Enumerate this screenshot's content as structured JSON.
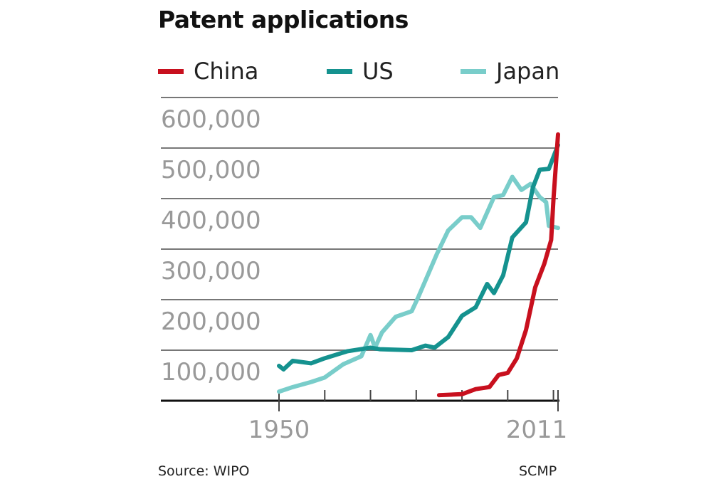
{
  "chart_data": {
    "type": "line",
    "title": "Patent applications",
    "xlabel": "",
    "ylabel": "",
    "xlim": [
      1950,
      2011
    ],
    "ylim": [
      0,
      600000
    ],
    "grid": true,
    "legend_placement": "top",
    "x_tick_labels": [
      "1950",
      "2011"
    ],
    "y_tick_labels": [
      "100,000",
      "200,000",
      "300,000",
      "400,000",
      "500,000",
      "600,000"
    ],
    "y_ticks": [
      100000,
      200000,
      300000,
      400000,
      500000,
      600000
    ],
    "x_ticks": [
      1950,
      1960,
      1970,
      1980,
      1990,
      2000,
      2010,
      2011
    ],
    "series": [
      {
        "name": "China",
        "color": "#c8101e",
        "points": [
          [
            1985,
            11000
          ],
          [
            1990,
            13000
          ],
          [
            1993,
            23000
          ],
          [
            1996,
            27000
          ],
          [
            1998,
            51000
          ],
          [
            2000,
            55000
          ],
          [
            2002,
            84000
          ],
          [
            2004,
            140000
          ],
          [
            2006,
            224000
          ],
          [
            2008,
            271000
          ],
          [
            2009.5,
            318000
          ],
          [
            2010,
            398000
          ],
          [
            2011,
            527000
          ]
        ]
      },
      {
        "name": "US",
        "color": "#15928f",
        "points": [
          [
            1950,
            69000
          ],
          [
            1951,
            62000
          ],
          [
            1953,
            79000
          ],
          [
            1957,
            74000
          ],
          [
            1960,
            84000
          ],
          [
            1965,
            98000
          ],
          [
            1970,
            105000
          ],
          [
            1972,
            102000
          ],
          [
            1979,
            100000
          ],
          [
            1982,
            109000
          ],
          [
            1984,
            105000
          ],
          [
            1987,
            126000
          ],
          [
            1990,
            168000
          ],
          [
            1993,
            185000
          ],
          [
            1995.5,
            231000
          ],
          [
            1997,
            213000
          ],
          [
            1999,
            248000
          ],
          [
            2001,
            323000
          ],
          [
            2004,
            353000
          ],
          [
            2005.5,
            422000
          ],
          [
            2007,
            457000
          ],
          [
            2009,
            459000
          ],
          [
            2011,
            506000
          ]
        ]
      },
      {
        "name": "Japan",
        "color": "#79cdca",
        "points": [
          [
            1950,
            18000
          ],
          [
            1953,
            27000
          ],
          [
            1957,
            37000
          ],
          [
            1960,
            46000
          ],
          [
            1964,
            72000
          ],
          [
            1968,
            88000
          ],
          [
            1970,
            130000
          ],
          [
            1971,
            105000
          ],
          [
            1972.5,
            135000
          ],
          [
            1975.5,
            166000
          ],
          [
            1979,
            177000
          ],
          [
            1980.5,
            206000
          ],
          [
            1984.5,
            290000
          ],
          [
            1987,
            337000
          ],
          [
            1990,
            363000
          ],
          [
            1992,
            363000
          ],
          [
            1994,
            342000
          ],
          [
            1997,
            403000
          ],
          [
            1999,
            407000
          ],
          [
            2001,
            443000
          ],
          [
            2003,
            417000
          ],
          [
            2005,
            429000
          ],
          [
            2007,
            403000
          ],
          [
            2008.4,
            393000
          ],
          [
            2009,
            346000
          ],
          [
            2011,
            342000
          ]
        ]
      }
    ]
  },
  "footer": {
    "source": "Source: WIPO",
    "credit": "SCMP"
  }
}
